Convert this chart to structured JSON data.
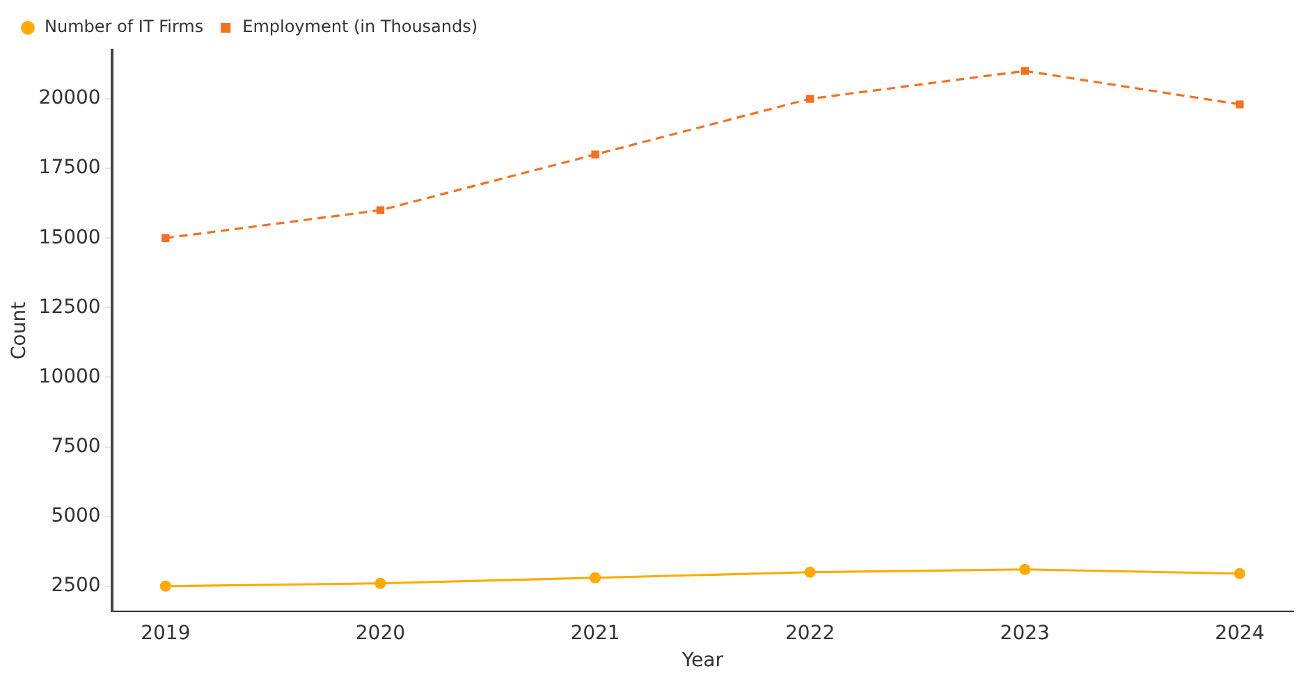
{
  "chart_data": {
    "type": "line",
    "xlabel": "Year",
    "ylabel": "Count",
    "x": [
      2019,
      2020,
      2021,
      2022,
      2023,
      2024
    ],
    "series": [
      {
        "name": "Number of IT Firms",
        "color": "#ffaa00",
        "values": [
          2500,
          2600,
          2800,
          3000,
          3100,
          2950
        ],
        "marker": "circle",
        "line_style": "solid"
      },
      {
        "name": "Employment (in Thousands)",
        "color": "#f5701f",
        "values": [
          15000,
          16000,
          18000,
          20000,
          21000,
          19800
        ],
        "marker": "square",
        "line_style": "dashed"
      }
    ],
    "xlim": [
      2018.75,
      2024.25
    ],
    "xticks": [
      2019,
      2020,
      2021,
      2022,
      2023,
      2024
    ],
    "ylim": [
      1600,
      21750
    ],
    "yticks": [
      2500,
      5000,
      7500,
      10000,
      12500,
      15000,
      17500,
      20000
    ],
    "grid": false,
    "legend": "top left"
  }
}
